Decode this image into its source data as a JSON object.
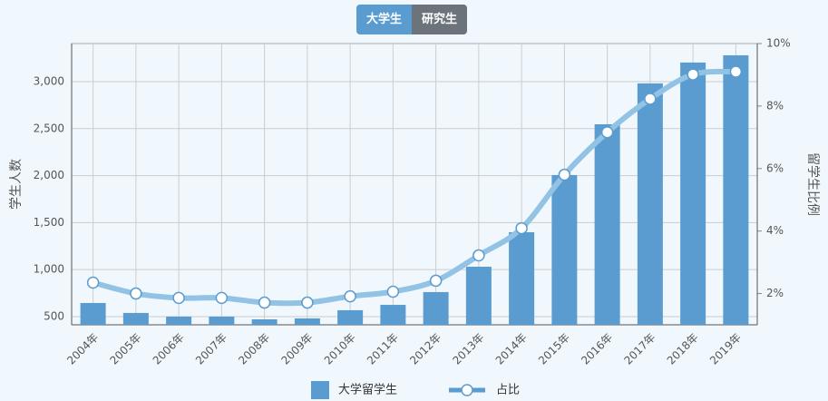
{
  "tabs": [
    "大学生",
    "研究生"
  ],
  "chart_data": {
    "type": "bar-line",
    "y_label": "学生人数",
    "y2_label": "留学生比例",
    "categories": [
      "2004年",
      "2005年",
      "2006年",
      "2007年",
      "2008年",
      "2009年",
      "2010年",
      "2011年",
      "2012年",
      "2013年",
      "2014年",
      "2015年",
      "2016年",
      "2017年",
      "2018年",
      "2019年"
    ],
    "series": [
      {
        "name": "大学留学生",
        "type": "bar",
        "color": "#5a9bd0",
        "values": [
          645,
          539,
          500,
          500,
          471,
          481,
          568,
          625,
          761,
          1031,
          1398,
          2006,
          2546,
          2981,
          3203,
          3280
        ]
      },
      {
        "name": "占比",
        "type": "line",
        "axis": "y2",
        "color": "#93c3e4",
        "values": [
          2.35,
          2.0,
          1.86,
          1.86,
          1.71,
          1.71,
          1.91,
          2.06,
          2.41,
          3.22,
          4.09,
          5.8,
          7.16,
          8.23,
          9.01,
          9.1
        ]
      }
    ],
    "ylim": [
      413,
      3405
    ],
    "yticks": [
      500,
      {
        "value": 1000,
        "label": "1,000"
      },
      {
        "value": 1500,
        "label": "1,500"
      },
      {
        "value": 2000,
        "label": "2,000"
      },
      {
        "value": 2500,
        "label": "2,500"
      },
      {
        "value": 3000,
        "label": "3,000"
      }
    ],
    "y2lim": [
      1,
      10
    ],
    "y2ticks": [
      {
        "value": 2,
        "label": "2%"
      },
      {
        "value": 4,
        "label": "4%"
      },
      {
        "value": 6,
        "label": "6%"
      },
      {
        "value": 8,
        "label": "8%"
      },
      {
        "value": 10,
        "label": "10%"
      }
    ],
    "grid": true
  }
}
